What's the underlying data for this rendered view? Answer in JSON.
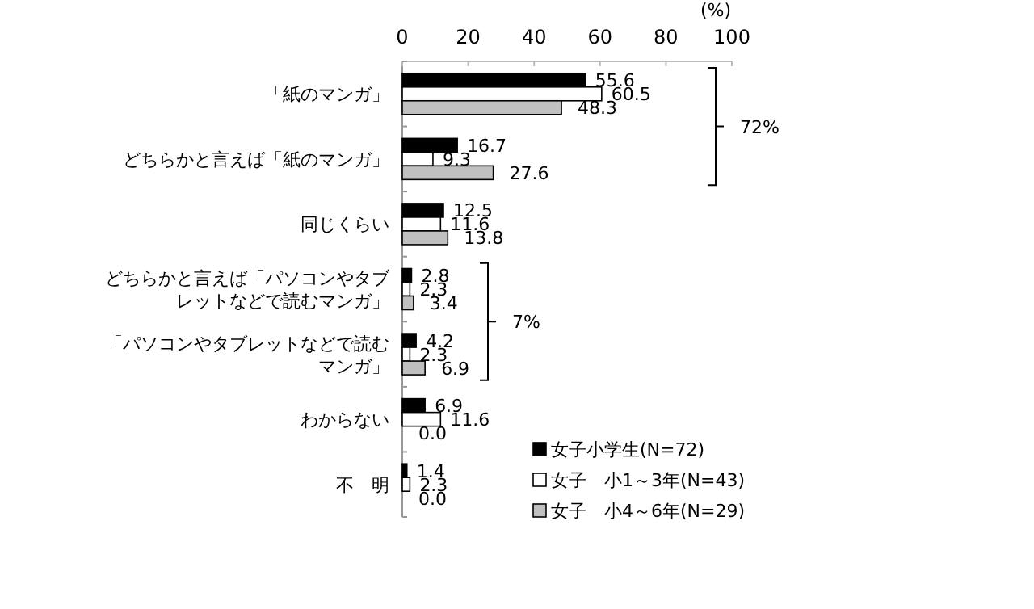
{
  "chart_data": {
    "type": "bar",
    "orientation": "horizontal",
    "xlabel": "(%)",
    "categories": [
      "「紙のマンガ」",
      "どちらかと言えば「紙のマンガ」",
      "同じくらい",
      "どちらかと言えば「パソコンやタブレットなどで読むマンガ」",
      "「パソコンやタブレットなどで読むマンガ」",
      "わからない",
      "不　明"
    ],
    "series": [
      {
        "name": "女子小学生(N=72)",
        "color": "#000000",
        "values": [
          55.6,
          16.7,
          12.5,
          2.8,
          4.2,
          6.9,
          1.4
        ],
        "value_labels": [
          "55.6",
          "16.7",
          "12.5",
          "2.8",
          "4.2",
          "6.9",
          "1.4"
        ]
      },
      {
        "name": "女子　小1～3年(N=43)",
        "color": "#ffffff",
        "values": [
          60.5,
          9.3,
          11.6,
          2.3,
          2.3,
          11.6,
          2.3
        ],
        "value_labels": [
          "60.5",
          "9.3",
          "11.6",
          "2.3",
          "2.3",
          "11.6",
          "2.3"
        ]
      },
      {
        "name": "女子　小4～6年(N=29)",
        "color": "#c0c0c0",
        "values": [
          48.3,
          27.6,
          13.8,
          3.4,
          6.9,
          0.0,
          0.0
        ],
        "value_labels": [
          "48.3",
          "27.6",
          "13.8",
          "3.4",
          "6.9",
          "0.0",
          "0.0"
        ]
      }
    ],
    "xlim": [
      0,
      100
    ],
    "xticks": [
      0,
      20,
      40,
      60,
      80,
      100
    ],
    "legend": "bottom right",
    "annotations": [
      "72%",
      "7%"
    ]
  }
}
